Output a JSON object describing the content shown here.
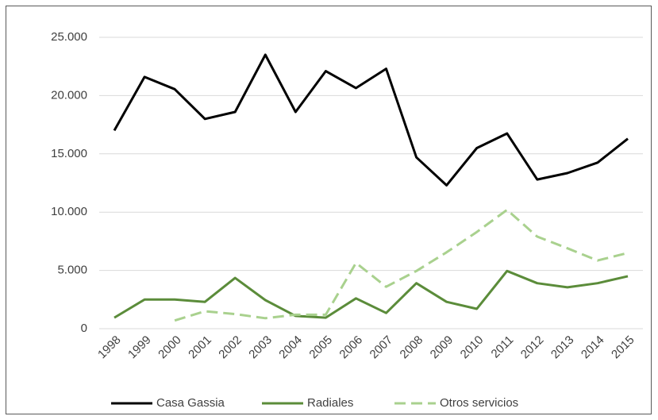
{
  "chart_data": {
    "type": "line",
    "categories": [
      "1998",
      "1999",
      "2000",
      "2001",
      "2002",
      "2003",
      "2004",
      "2005",
      "2006",
      "2007",
      "2008",
      "2009",
      "2010",
      "2011",
      "2012",
      "2013",
      "2014",
      "2015"
    ],
    "series": [
      {
        "name": "Casa Gassia",
        "color": "#000000",
        "dash": false,
        "values": [
          17000,
          21600,
          20550,
          18000,
          18600,
          23500,
          18600,
          22100,
          20650,
          22300,
          14700,
          12300,
          15500,
          16750,
          12800,
          13350,
          14250,
          16300
        ]
      },
      {
        "name": "Radiales",
        "color": "#5b8c3a",
        "dash": false,
        "values": [
          950,
          2500,
          2500,
          2300,
          4350,
          2450,
          1100,
          950,
          2600,
          1350,
          3900,
          2300,
          1700,
          4950,
          3900,
          3550,
          3900,
          4500
        ]
      },
      {
        "name": "Otros servicios",
        "color": "#a9d18e",
        "dash": true,
        "values": [
          null,
          null,
          700,
          1500,
          1250,
          900,
          1200,
          1200,
          5650,
          3600,
          4950,
          6550,
          8300,
          10200,
          7900,
          6900,
          5850,
          6500
        ]
      }
    ],
    "ylim": [
      0,
      25000
    ],
    "yticks": [
      0,
      {
        "value": 5000,
        "label": "5.000"
      },
      {
        "value": 10000,
        "label": "10.000"
      },
      {
        "value": 15000,
        "label": "15.000"
      },
      {
        "value": 20000,
        "label": "20.000"
      },
      {
        "value": 25000,
        "label": "25.000"
      }
    ],
    "grid": true,
    "legend": "bottom"
  }
}
